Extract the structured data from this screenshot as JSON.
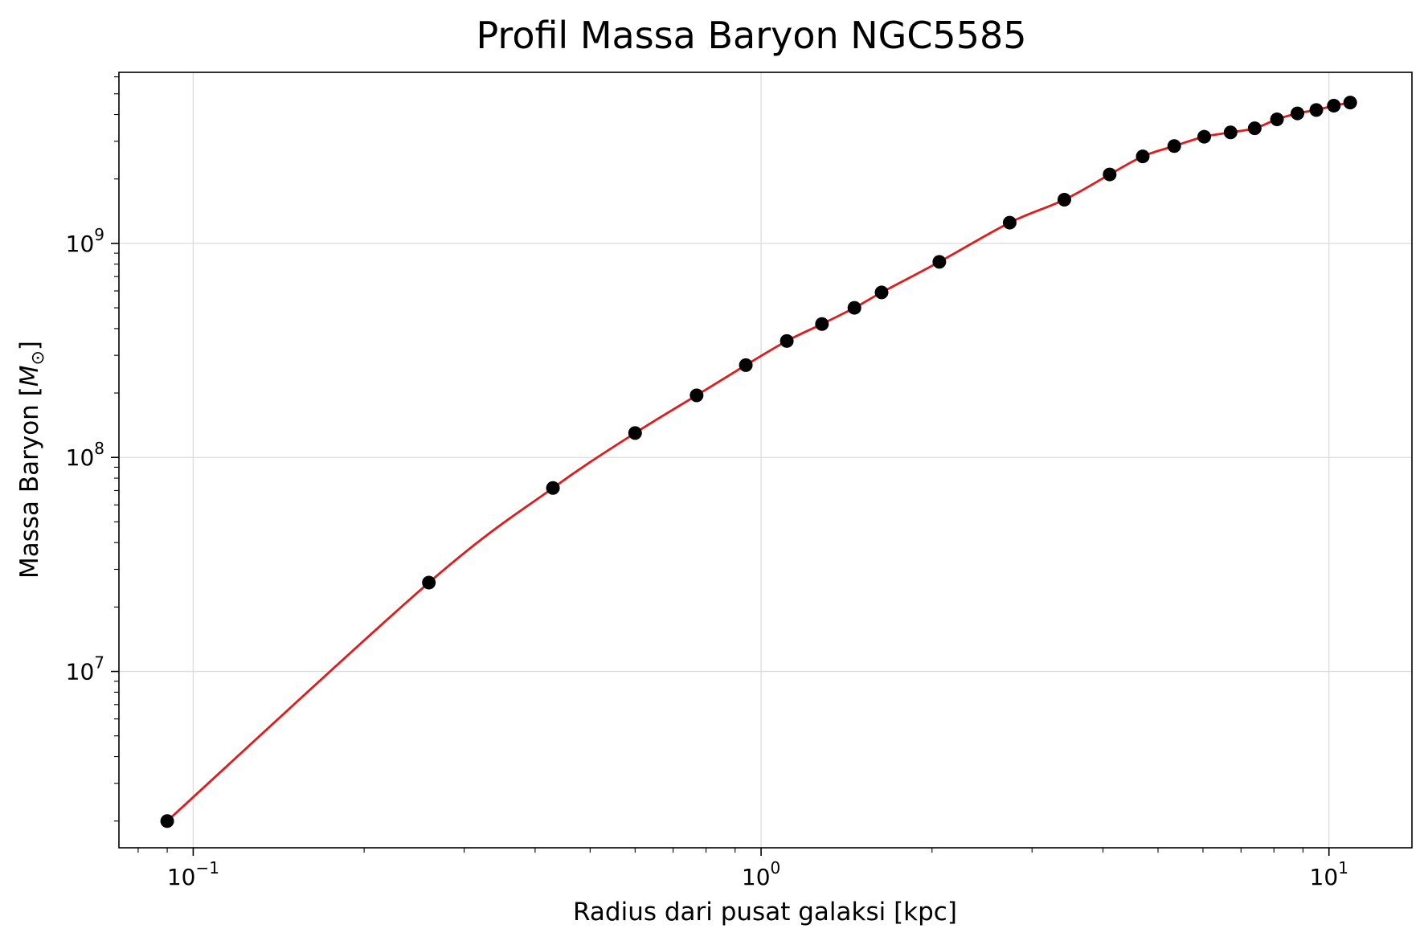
{
  "chart_data": {
    "type": "line",
    "title": "Profil Massa Baryon NGC5585",
    "xlabel": "Radius dari pusat galaksi [kpc]",
    "ylabel_prefix": "Massa Baryon [",
    "ylabel_symbol": "M",
    "ylabel_subscript": "⊙",
    "ylabel_suffix": "]",
    "xscale": "log",
    "yscale": "log",
    "xlim": [
      0.074,
      14.0
    ],
    "ylim": [
      1500000,
      6300000000
    ],
    "grid": true,
    "x_major_ticks": [
      {
        "value": 0.1,
        "base": "10",
        "exp": "−1"
      },
      {
        "value": 1,
        "base": "10",
        "exp": "0"
      },
      {
        "value": 10,
        "base": "10",
        "exp": "1"
      }
    ],
    "y_major_ticks": [
      {
        "value": 10000000,
        "base": "10",
        "exp": "7"
      },
      {
        "value": 100000000,
        "base": "10",
        "exp": "8"
      },
      {
        "value": 1000000000,
        "base": "10",
        "exp": "9"
      }
    ],
    "series": [
      {
        "style": "points",
        "color": "#000000",
        "x": [
          0.09,
          0.26,
          0.43,
          0.6,
          0.77,
          0.94,
          1.11,
          1.28,
          1.46,
          1.63,
          2.06,
          2.74,
          3.42,
          4.11,
          4.7,
          5.34,
          6.03,
          6.71,
          7.4,
          8.1,
          8.8,
          9.5,
          10.2,
          10.9
        ],
        "y": [
          2000000,
          26000000,
          72000000,
          130000000,
          195000000,
          270000000,
          350000000,
          420000000,
          500000000,
          590000000,
          820000000,
          1250000000,
          1600000000,
          2100000000,
          2550000000,
          2850000000,
          3150000000,
          3300000000,
          3450000000,
          3800000000,
          4050000000,
          4200000000,
          4400000000,
          4550000000
        ]
      },
      {
        "style": "line",
        "color": "#e31a1c",
        "x": [
          0.09,
          0.26,
          0.43,
          0.6,
          0.77,
          0.94,
          1.11,
          1.28,
          1.46,
          1.63,
          2.06,
          2.74,
          3.42,
          4.11,
          4.7,
          5.34,
          6.03,
          6.71,
          7.4,
          8.1,
          8.8,
          9.5,
          10.2,
          10.9
        ],
        "y": [
          2000000,
          26000000,
          72000000,
          130000000,
          195000000,
          270000000,
          350000000,
          420000000,
          500000000,
          590000000,
          820000000,
          1250000000,
          1600000000,
          2100000000,
          2550000000,
          2850000000,
          3150000000,
          3300000000,
          3450000000,
          3800000000,
          4050000000,
          4200000000,
          4400000000,
          4550000000
        ]
      }
    ]
  }
}
